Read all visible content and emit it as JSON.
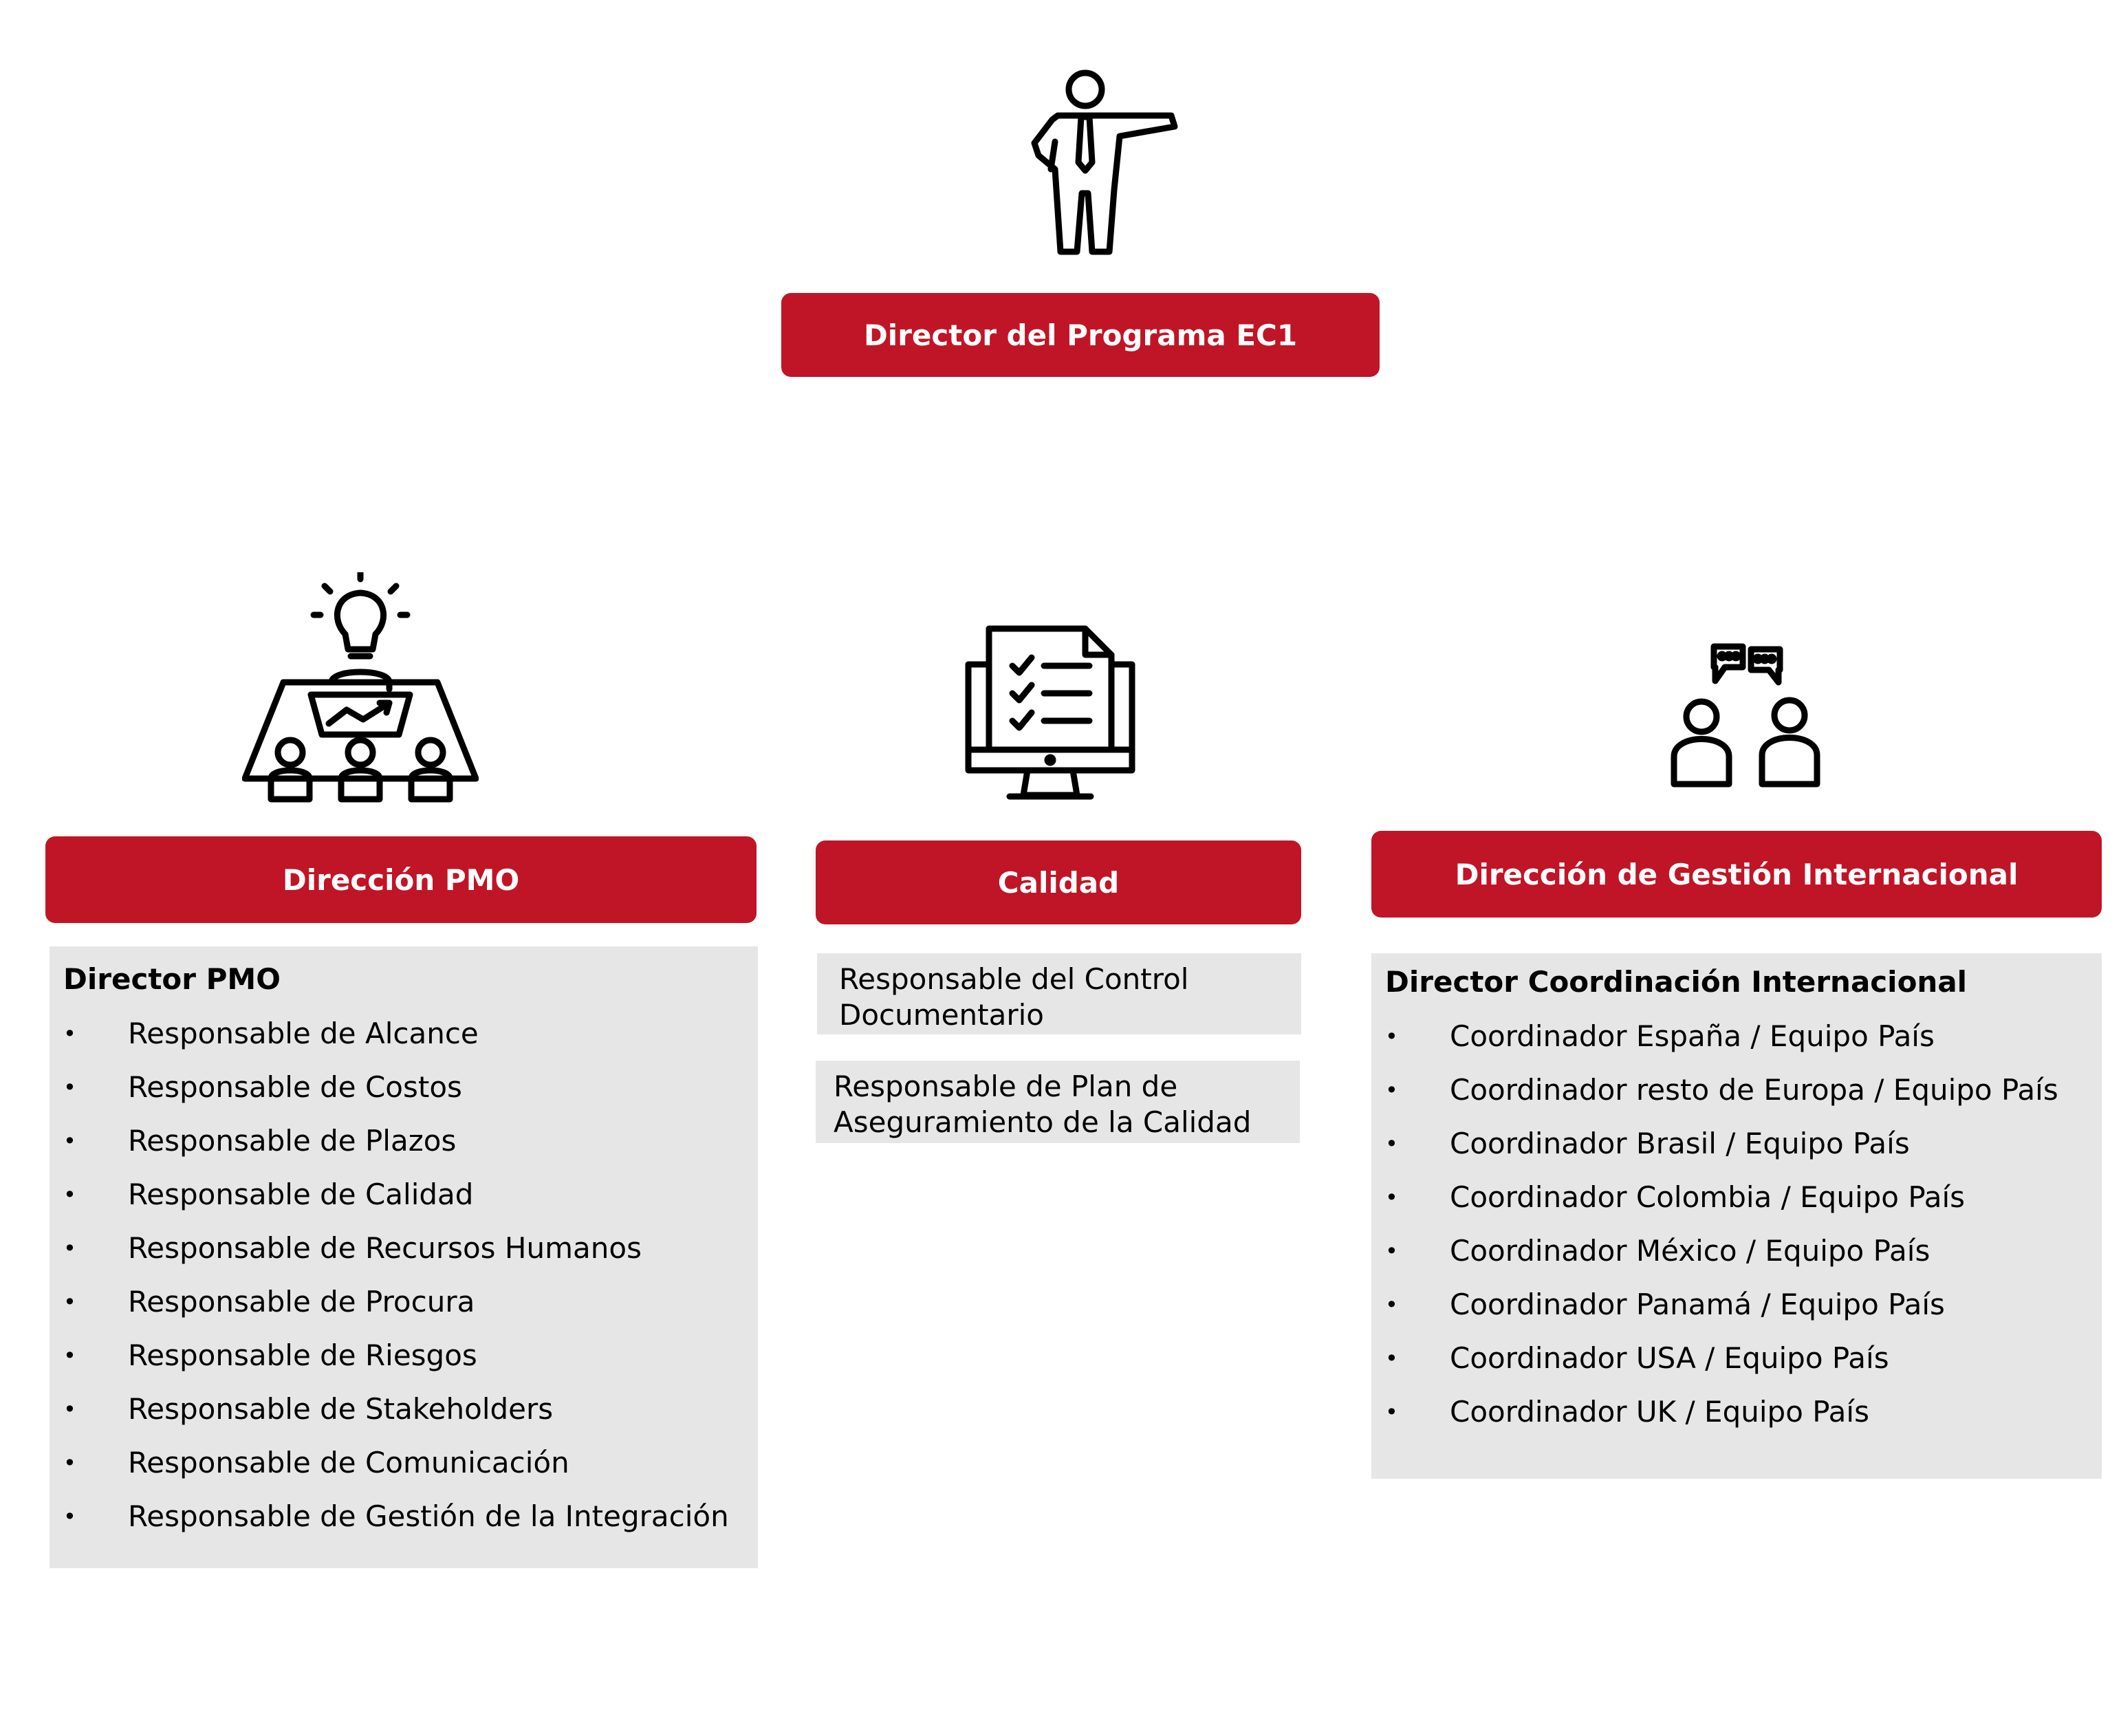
{
  "top": {
    "title": "Director del Programa EC1"
  },
  "pmo": {
    "title": "Dirección PMO",
    "list_title": "Director PMO",
    "items": [
      "Responsable de Alcance",
      "Responsable de Costos",
      "Responsable de Plazos",
      "Responsable de Calidad",
      "Responsable de Recursos Humanos",
      "Responsable de Procura",
      "Responsable de Riesgos",
      "Responsable de Stakeholders",
      "Responsable de Comunicación",
      "Responsable de Gestión de la Integración"
    ]
  },
  "quality": {
    "title": "Calidad",
    "boxes": [
      {
        "line1": "Responsable del Control",
        "line2": "Documentario"
      },
      {
        "line1": "Responsable de Plan de",
        "line2": "Aseguramiento de la Calidad"
      }
    ]
  },
  "intl": {
    "title": "Dirección de Gestión Internacional",
    "list_title": "Director Coordinación Internacional",
    "items": [
      "Coordinador España / Equipo País",
      "Coordinador resto de Europa / Equipo País",
      "Coordinador Brasil / Equipo País",
      "Coordinador Colombia / Equipo País",
      "Coordinador México / Equipo País",
      "Coordinador Panamá / Equipo País",
      "Coordinador USA / Equipo País",
      "Coordinador UK / Equipo País"
    ]
  },
  "bullet": "•",
  "colors": {
    "accent": "#c01526",
    "panel": "#e6e6e6",
    "text": "#000000"
  },
  "icons": [
    "presenter-icon",
    "meeting-idea-icon",
    "checklist-monitor-icon",
    "two-people-chat-icon"
  ]
}
